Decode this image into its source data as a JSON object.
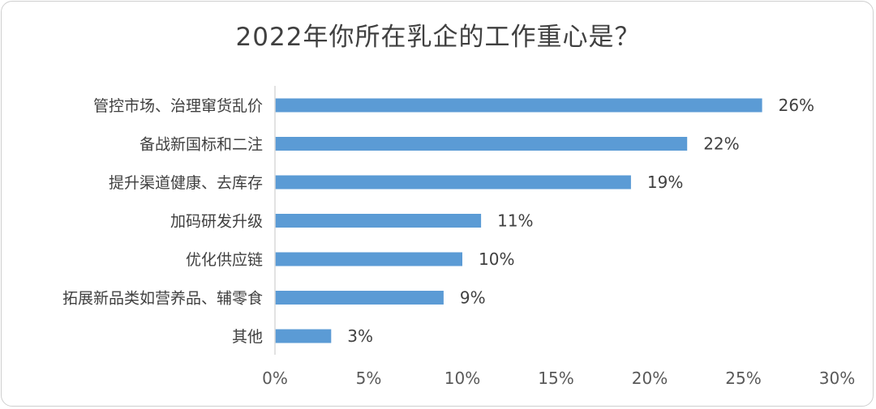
{
  "chart_data": {
    "type": "bar",
    "orientation": "horizontal",
    "title": "2022年你所在乳企的工作重心是？",
    "categories": [
      "管控市场、治理窜货乱价",
      "备战新国标和二注",
      "提升渠道健康、去库存",
      "加码研发升级",
      "优化供应链",
      "拓展新品类如营养品、辅零食",
      "其他"
    ],
    "values": [
      26,
      22,
      19,
      11,
      10,
      9,
      3
    ],
    "value_labels": [
      "26%",
      "22%",
      "19%",
      "11%",
      "10%",
      "9%",
      "3%"
    ],
    "xlim": [
      0,
      30
    ],
    "x_ticks": [
      0,
      5,
      10,
      15,
      20,
      25,
      30
    ],
    "x_tick_labels": [
      "0%",
      "5%",
      "10%",
      "15%",
      "20%",
      "25%",
      "30%"
    ],
    "grid": false,
    "legend": "none",
    "bar_color": "#5b9bd5",
    "axis_color": "#d9d9d9"
  }
}
